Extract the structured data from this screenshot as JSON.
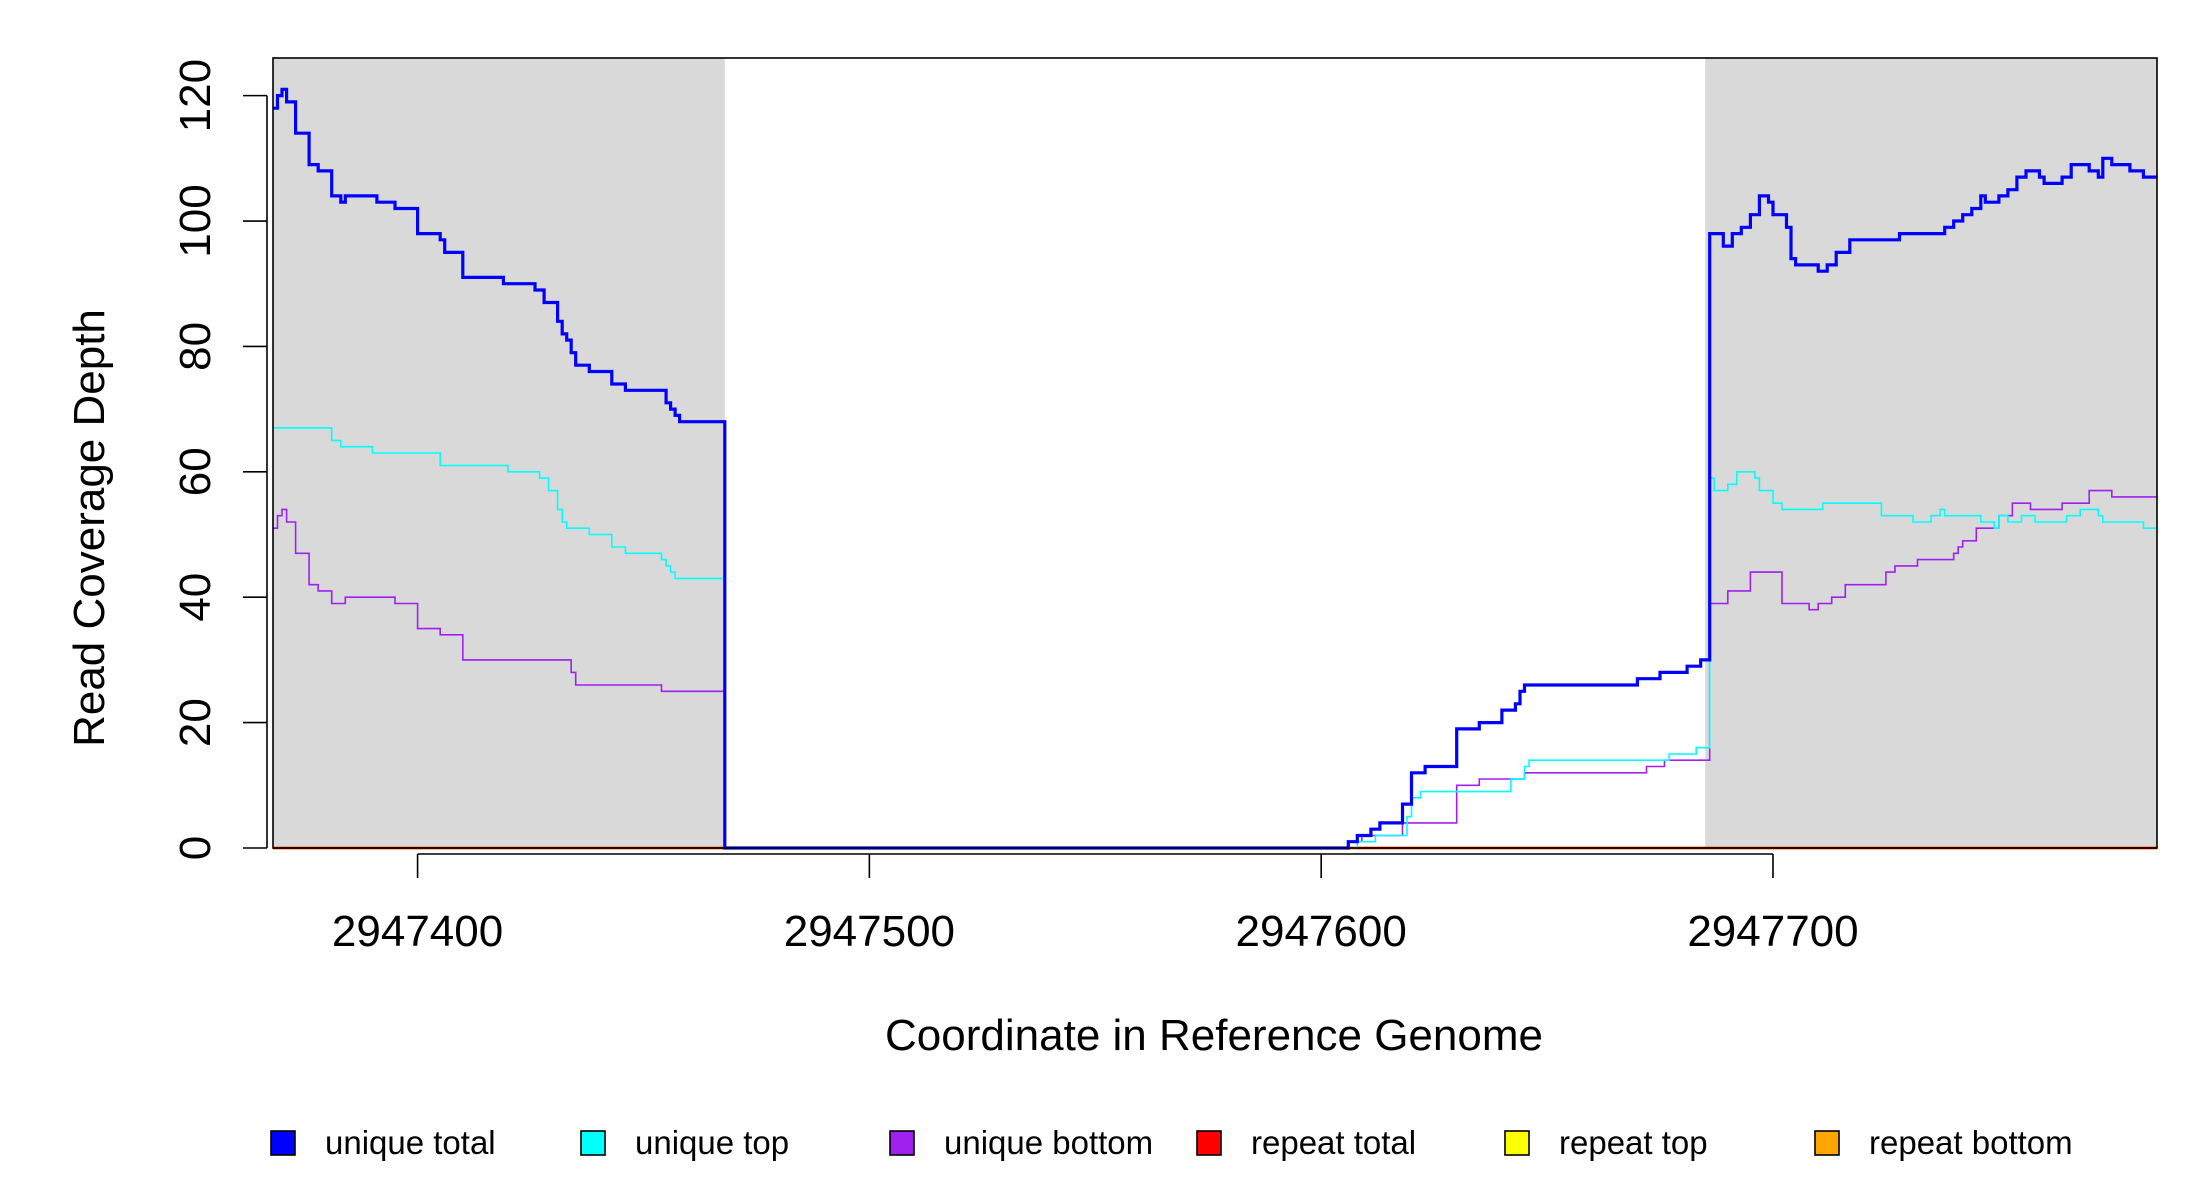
{
  "chart_data": {
    "type": "line",
    "xlabel": "Coordinate in Reference Genome",
    "ylabel": "Read Coverage Depth",
    "xlim": [
      2947368,
      2947785
    ],
    "ylim": [
      0,
      126
    ],
    "xticks": [
      2947400,
      2947500,
      2947600,
      2947700
    ],
    "yticks": [
      0,
      20,
      40,
      60,
      80,
      100,
      120
    ],
    "grid": false,
    "shaded_regions": [
      [
        2947368,
        2947468
      ],
      [
        2947685,
        2947785
      ]
    ],
    "shade_color": "#d9d9d9",
    "legend_position": "bottom",
    "legend": [
      {
        "label": "unique total",
        "color": "#0000ff"
      },
      {
        "label": "unique top",
        "color": "#00ffff"
      },
      {
        "label": "unique bottom",
        "color": "#a020f0"
      },
      {
        "label": "repeat total",
        "color": "#ff0000"
      },
      {
        "label": "repeat top",
        "color": "#ffff00"
      },
      {
        "label": "repeat bottom",
        "color": "#ffa500"
      }
    ],
    "series": [
      {
        "name": "unique total",
        "color": "#0000ff",
        "points": [
          [
            2947368,
            118
          ],
          [
            2947369,
            120
          ],
          [
            2947370,
            121
          ],
          [
            2947371,
            119
          ],
          [
            2947373,
            114
          ],
          [
            2947376,
            109
          ],
          [
            2947378,
            108
          ],
          [
            2947381,
            104
          ],
          [
            2947383,
            103
          ],
          [
            2947384,
            104
          ],
          [
            2947391,
            103
          ],
          [
            2947395,
            102
          ],
          [
            2947400,
            98
          ],
          [
            2947405,
            97
          ],
          [
            2947406,
            95
          ],
          [
            2947410,
            91
          ],
          [
            2947419,
            90
          ],
          [
            2947426,
            89
          ],
          [
            2947428,
            87
          ],
          [
            2947431,
            84
          ],
          [
            2947432,
            82
          ],
          [
            2947433,
            81
          ],
          [
            2947434,
            79
          ],
          [
            2947435,
            77
          ],
          [
            2947438,
            76
          ],
          [
            2947443,
            74
          ],
          [
            2947446,
            73
          ],
          [
            2947455,
            71
          ],
          [
            2947456,
            70
          ],
          [
            2947457,
            69
          ],
          [
            2947458,
            68
          ],
          [
            2947468,
            0
          ],
          [
            2947606,
            1
          ],
          [
            2947608,
            2
          ],
          [
            2947611,
            3
          ],
          [
            2947613,
            4
          ],
          [
            2947618,
            7
          ],
          [
            2947620,
            12
          ],
          [
            2947623,
            13
          ],
          [
            2947630,
            19
          ],
          [
            2947635,
            20
          ],
          [
            2947640,
            22
          ],
          [
            2947643,
            23
          ],
          [
            2947644,
            25
          ],
          [
            2947645,
            26
          ],
          [
            2947670,
            27
          ],
          [
            2947675,
            28
          ],
          [
            2947681,
            29
          ],
          [
            2947684,
            30
          ],
          [
            2947686,
            98
          ],
          [
            2947689,
            96
          ],
          [
            2947691,
            98
          ],
          [
            2947693,
            99
          ],
          [
            2947695,
            101
          ],
          [
            2947697,
            104
          ],
          [
            2947699,
            103
          ],
          [
            2947700,
            101
          ],
          [
            2947703,
            99
          ],
          [
            2947704,
            94
          ],
          [
            2947705,
            93
          ],
          [
            2947710,
            92
          ],
          [
            2947712,
            93
          ],
          [
            2947714,
            95
          ],
          [
            2947717,
            97
          ],
          [
            2947728,
            98
          ],
          [
            2947738,
            99
          ],
          [
            2947740,
            100
          ],
          [
            2947742,
            101
          ],
          [
            2947744,
            102
          ],
          [
            2947746,
            104
          ],
          [
            2947747,
            103
          ],
          [
            2947750,
            104
          ],
          [
            2947752,
            105
          ],
          [
            2947754,
            107
          ],
          [
            2947756,
            108
          ],
          [
            2947759,
            107
          ],
          [
            2947760,
            106
          ],
          [
            2947764,
            107
          ],
          [
            2947766,
            109
          ],
          [
            2947770,
            108
          ],
          [
            2947772,
            107
          ],
          [
            2947773,
            110
          ],
          [
            2947775,
            109
          ],
          [
            2947779,
            108
          ],
          [
            2947782,
            107
          ],
          [
            2947785,
            107
          ]
        ]
      },
      {
        "name": "unique top",
        "color": "#00ffff",
        "points": [
          [
            2947368,
            67
          ],
          [
            2947381,
            65
          ],
          [
            2947383,
            64
          ],
          [
            2947390,
            63
          ],
          [
            2947405,
            61
          ],
          [
            2947420,
            60
          ],
          [
            2947427,
            59
          ],
          [
            2947429,
            57
          ],
          [
            2947431,
            54
          ],
          [
            2947432,
            52
          ],
          [
            2947433,
            51
          ],
          [
            2947438,
            50
          ],
          [
            2947443,
            48
          ],
          [
            2947446,
            47
          ],
          [
            2947454,
            46
          ],
          [
            2947455,
            45
          ],
          [
            2947456,
            44
          ],
          [
            2947457,
            43
          ],
          [
            2947468,
            0
          ],
          [
            2947608,
            1
          ],
          [
            2947612,
            2
          ],
          [
            2947619,
            5
          ],
          [
            2947620,
            8
          ],
          [
            2947622,
            9
          ],
          [
            2947642,
            11
          ],
          [
            2947645,
            13
          ],
          [
            2947646,
            14
          ],
          [
            2947677,
            15
          ],
          [
            2947683,
            16
          ],
          [
            2947686,
            59
          ],
          [
            2947687,
            57
          ],
          [
            2947690,
            58
          ],
          [
            2947692,
            60
          ],
          [
            2947696,
            59
          ],
          [
            2947697,
            57
          ],
          [
            2947700,
            55
          ],
          [
            2947702,
            54
          ],
          [
            2947711,
            55
          ],
          [
            2947724,
            53
          ],
          [
            2947731,
            52
          ],
          [
            2947735,
            53
          ],
          [
            2947737,
            54
          ],
          [
            2947738,
            53
          ],
          [
            2947746,
            52
          ],
          [
            2947749,
            51
          ],
          [
            2947750,
            53
          ],
          [
            2947752,
            52
          ],
          [
            2947755,
            53
          ],
          [
            2947758,
            52
          ],
          [
            2947765,
            53
          ],
          [
            2947768,
            54
          ],
          [
            2947772,
            53
          ],
          [
            2947773,
            52
          ],
          [
            2947782,
            51
          ],
          [
            2947785,
            51
          ]
        ]
      },
      {
        "name": "unique bottom",
        "color": "#a020f0",
        "points": [
          [
            2947368,
            51
          ],
          [
            2947369,
            53
          ],
          [
            2947370,
            54
          ],
          [
            2947371,
            52
          ],
          [
            2947373,
            47
          ],
          [
            2947376,
            42
          ],
          [
            2947378,
            41
          ],
          [
            2947381,
            39
          ],
          [
            2947384,
            40
          ],
          [
            2947395,
            39
          ],
          [
            2947400,
            35
          ],
          [
            2947405,
            34
          ],
          [
            2947410,
            30
          ],
          [
            2947434,
            28
          ],
          [
            2947435,
            26
          ],
          [
            2947454,
            25
          ],
          [
            2947468,
            0
          ],
          [
            2947606,
            1
          ],
          [
            2947609,
            2
          ],
          [
            2947618,
            4
          ],
          [
            2947630,
            10
          ],
          [
            2947635,
            11
          ],
          [
            2947645,
            12
          ],
          [
            2947672,
            13
          ],
          [
            2947676,
            14
          ],
          [
            2947686,
            39
          ],
          [
            2947690,
            41
          ],
          [
            2947695,
            44
          ],
          [
            2947702,
            39
          ],
          [
            2947708,
            38
          ],
          [
            2947710,
            39
          ],
          [
            2947713,
            40
          ],
          [
            2947716,
            42
          ],
          [
            2947725,
            44
          ],
          [
            2947727,
            45
          ],
          [
            2947732,
            46
          ],
          [
            2947740,
            47
          ],
          [
            2947741,
            48
          ],
          [
            2947742,
            49
          ],
          [
            2947745,
            51
          ],
          [
            2947750,
            53
          ],
          [
            2947753,
            55
          ],
          [
            2947757,
            54
          ],
          [
            2947764,
            55
          ],
          [
            2947770,
            57
          ],
          [
            2947775,
            56
          ],
          [
            2947785,
            56
          ]
        ]
      },
      {
        "name": "repeat total",
        "color": "#ff0000",
        "points": [
          [
            2947368,
            0
          ],
          [
            2947785,
            0
          ]
        ]
      },
      {
        "name": "repeat top",
        "color": "#ffff00",
        "points": [
          [
            2947368,
            0
          ],
          [
            2947785,
            0
          ]
        ]
      },
      {
        "name": "repeat bottom",
        "color": "#ffa500",
        "points": [
          [
            2947368,
            0
          ],
          [
            2947785,
            0
          ]
        ]
      }
    ]
  }
}
